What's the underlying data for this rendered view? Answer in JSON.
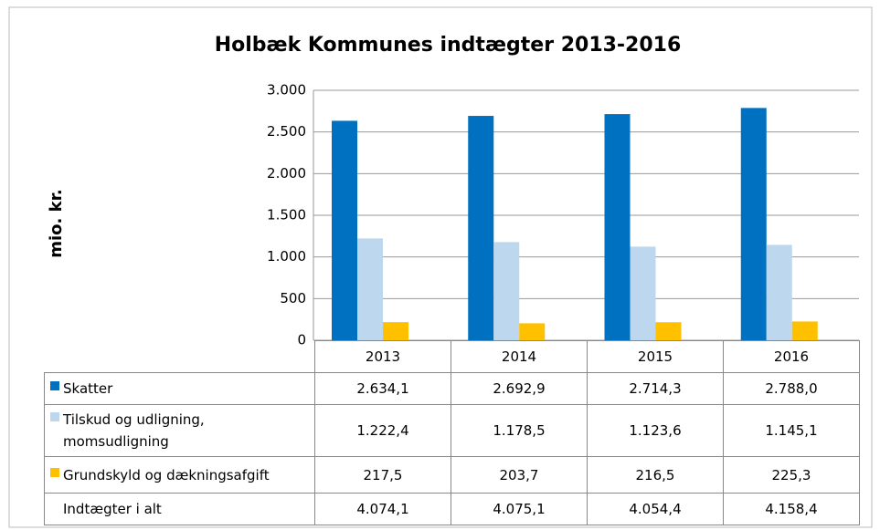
{
  "chart_data": {
    "type": "bar",
    "title": "Holbæk Kommunes indtægter 2013-2016",
    "ylabel": "mio. kr.",
    "categories": [
      "2013",
      "2014",
      "2015",
      "2016"
    ],
    "series": [
      {
        "name": "Skatter",
        "color": "#0070c0",
        "values": [
          2634.1,
          2692.9,
          2714.3,
          2788.0
        ],
        "value_labels": [
          "2.634,1",
          "2.692,9",
          "2.714,3",
          "2.788,0"
        ]
      },
      {
        "name": "Tilskud og udligning, momsudligning",
        "color": "#bdd7ee",
        "values": [
          1222.4,
          1178.5,
          1123.6,
          1145.1
        ],
        "value_labels": [
          "1.222,4",
          "1.178,5",
          "1.123,6",
          "1.145,1"
        ]
      },
      {
        "name": "Grundskyld og dækningsafgift",
        "color": "#ffc000",
        "values": [
          217.5,
          203.7,
          216.5,
          225.3
        ],
        "value_labels": [
          "217,5",
          "203,7",
          "216,5",
          "225,3"
        ]
      }
    ],
    "totals": {
      "name": "Indtægter i alt",
      "values": [
        4074.1,
        4075.1,
        4054.4,
        4158.4
      ],
      "value_labels": [
        "4.074,1",
        "4.075,1",
        "4.054,4",
        "4.158,4"
      ]
    },
    "ylim": [
      0,
      3000
    ],
    "yticks": [
      0,
      500,
      {
        "value": 1000,
        "label": "1.000"
      },
      {
        "value": 1500,
        "label": "1.500"
      },
      {
        "value": 2000,
        "label": "2.000"
      },
      {
        "value": 2500,
        "label": "2.500"
      },
      {
        "value": 3000,
        "label": "3.000"
      }
    ],
    "grid": true
  }
}
